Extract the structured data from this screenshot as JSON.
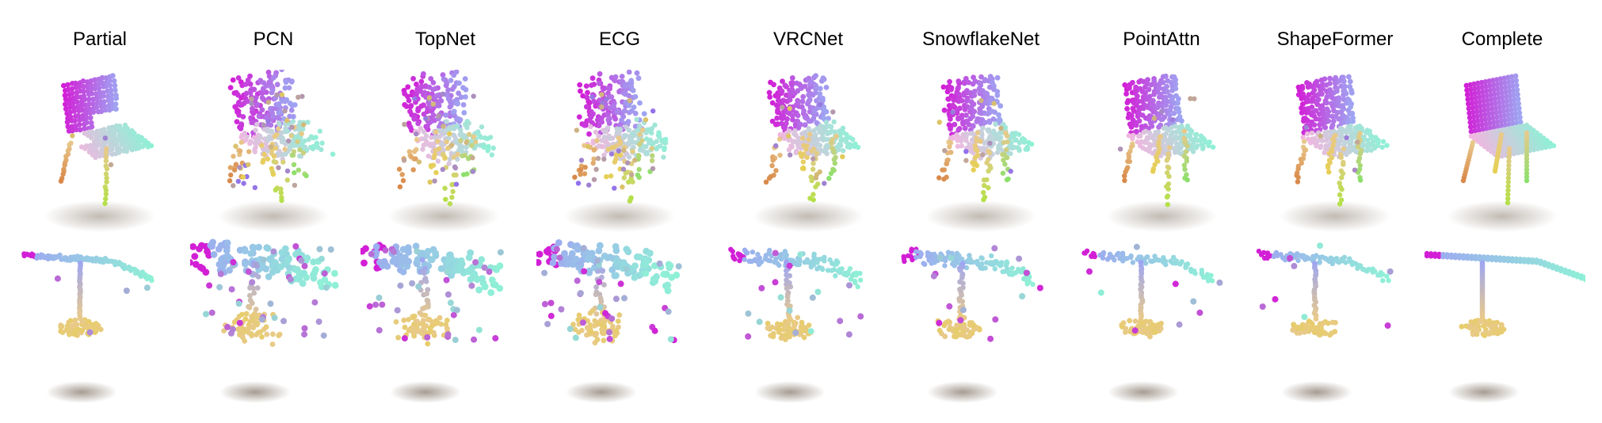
{
  "methods": [
    {
      "key": "partial",
      "label": "Partial"
    },
    {
      "key": "pcn",
      "label": "PCN"
    },
    {
      "key": "topnet",
      "label": "TopNet"
    },
    {
      "key": "ecg",
      "label": "ECG"
    },
    {
      "key": "vrcnet",
      "label": "VRCNet"
    },
    {
      "key": "snowflakenet",
      "label": "SnowflakeNet"
    },
    {
      "key": "pointattn",
      "label": "PointAttn"
    },
    {
      "key": "shapeformer",
      "label": "ShapeFormer"
    },
    {
      "key": "complete",
      "label": "Complete"
    }
  ],
  "rows": [
    {
      "key": "chair"
    },
    {
      "key": "lamp"
    }
  ],
  "colors": {
    "magenta": "#d21fd6",
    "violet": "#8f6ff0",
    "blue": "#9ea6f2",
    "pink": "#f2b6e0",
    "cyan": "#8ff0d6",
    "green": "#8de06c",
    "lime": "#b5e04a",
    "yellow": "#e6cf55",
    "orange": "#d9894a",
    "tan": "#e8c98c",
    "shadow": "#6b5a4a"
  }
}
